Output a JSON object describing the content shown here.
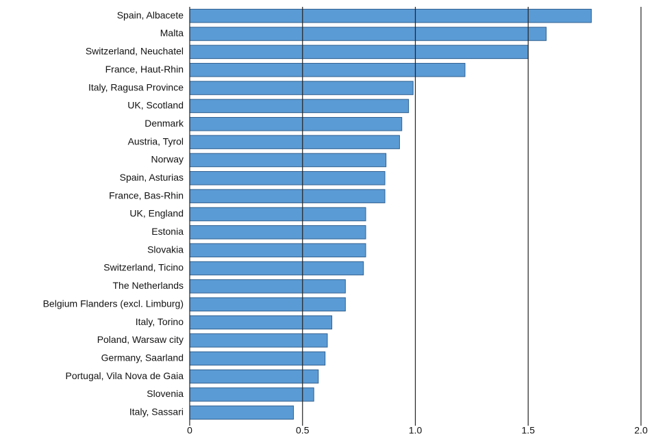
{
  "chart_data": {
    "type": "bar",
    "orientation": "horizontal",
    "categories": [
      "Spain, Albacete",
      "Malta",
      "Switzerland, Neuchatel",
      "France, Haut-Rhin",
      "Italy, Ragusa Province",
      "UK, Scotland",
      "Denmark",
      "Austria, Tyrol",
      "Norway",
      "Spain, Asturias",
      "France, Bas-Rhin",
      "UK, England",
      "Estonia",
      "Slovakia",
      "Switzerland, Ticino",
      "The Netherlands",
      "Belgium Flanders (excl. Limburg)",
      "Italy, Torino",
      "Poland, Warsaw city",
      "Germany, Saarland",
      "Portugal, Vila Nova de Gaia",
      "Slovenia",
      "Italy, Sassari"
    ],
    "values": [
      1.78,
      1.58,
      1.5,
      1.22,
      0.99,
      0.97,
      0.94,
      0.93,
      0.87,
      0.865,
      0.865,
      0.78,
      0.78,
      0.78,
      0.77,
      0.69,
      0.69,
      0.63,
      0.61,
      0.6,
      0.57,
      0.55,
      0.46
    ],
    "color": "#5b9bd5",
    "xlim": [
      0,
      2.0
    ],
    "xticks": [
      0,
      0.5,
      {
        "value": 1.0,
        "label": "1.0"
      },
      1.5,
      {
        "value": 2.0,
        "label": "2.0"
      }
    ],
    "grid": true
  }
}
